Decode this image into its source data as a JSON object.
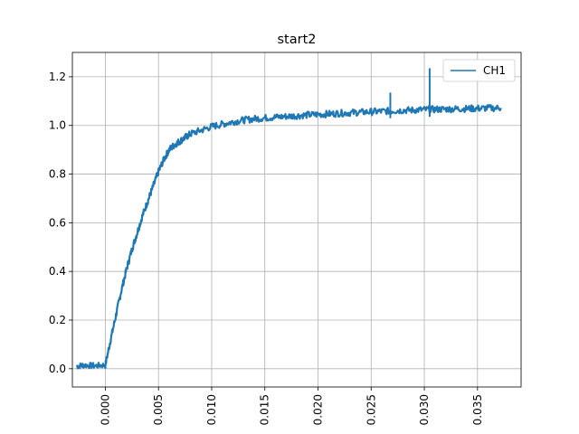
{
  "chart_data": {
    "type": "line",
    "title": "start2",
    "xlabel": "",
    "ylabel": "",
    "xlim": [
      -0.0031,
      0.0391
    ],
    "ylim": [
      -0.075,
      1.3
    ],
    "grid": true,
    "legend": {
      "placement": "top-right",
      "entries": [
        "CH1"
      ]
    },
    "x_ticks": [
      0.0,
      0.005,
      0.01,
      0.015,
      0.02,
      0.025,
      0.03,
      0.035
    ],
    "x_tick_labels": [
      "0.000",
      "0.005",
      "0.010",
      "0.015",
      "0.020",
      "0.025",
      "0.030",
      "0.035"
    ],
    "y_ticks": [
      0.0,
      0.2,
      0.4,
      0.6,
      0.8,
      1.0,
      1.2
    ],
    "y_tick_labels": [
      "0.0",
      "0.2",
      "0.4",
      "0.6",
      "0.8",
      "1.0",
      "1.2"
    ],
    "series": [
      {
        "name": "CH1",
        "color": "#1f77b4",
        "x": [
          -0.0027,
          -0.002,
          -0.001,
          0.0,
          0.0005,
          0.001,
          0.0015,
          0.002,
          0.0025,
          0.003,
          0.0035,
          0.004,
          0.0045,
          0.005,
          0.0055,
          0.006,
          0.0065,
          0.007,
          0.0075,
          0.008,
          0.009,
          0.01,
          0.011,
          0.012,
          0.013,
          0.014,
          0.015,
          0.016,
          0.017,
          0.018,
          0.019,
          0.02,
          0.021,
          0.022,
          0.023,
          0.024,
          0.025,
          0.026,
          0.027,
          0.028,
          0.029,
          0.03,
          0.031,
          0.032,
          0.033,
          0.034,
          0.035,
          0.036,
          0.0372
        ],
        "y": [
          0.01,
          0.015,
          0.012,
          0.015,
          0.12,
          0.22,
          0.32,
          0.41,
          0.49,
          0.56,
          0.63,
          0.69,
          0.75,
          0.81,
          0.86,
          0.9,
          0.92,
          0.935,
          0.95,
          0.965,
          0.98,
          0.995,
          1.005,
          1.015,
          1.022,
          1.027,
          1.031,
          1.034,
          1.037,
          1.04,
          1.043,
          1.045,
          1.047,
          1.05,
          1.052,
          1.054,
          1.056,
          1.058,
          1.06,
          1.062,
          1.063,
          1.065,
          1.066,
          1.067,
          1.068,
          1.069,
          1.07,
          1.071,
          1.072
        ],
        "spikes": [
          {
            "x": 0.0268,
            "y": 1.135
          },
          {
            "x": 0.0305,
            "y": 1.235
          }
        ]
      }
    ]
  }
}
